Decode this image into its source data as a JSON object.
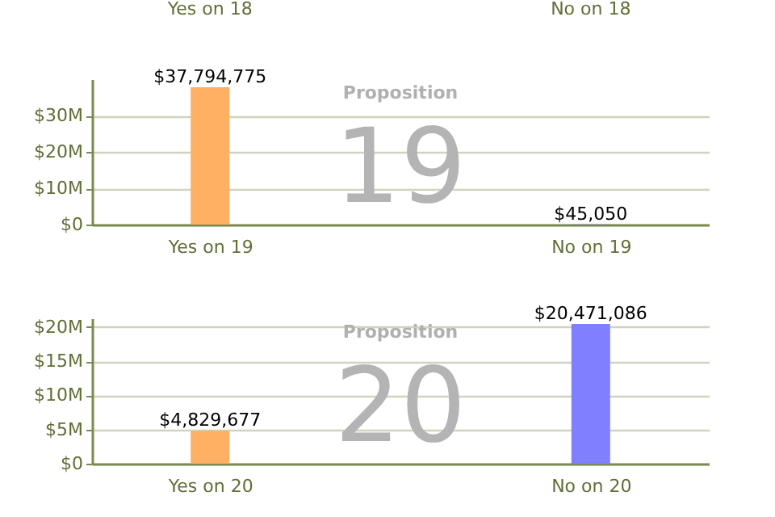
{
  "chart_data": [
    {
      "type": "other",
      "annotations": [
        "Yes on 18",
        "No on 18"
      ]
    },
    {
      "type": "bar",
      "annotations": [
        "Proposition",
        "19"
      ],
      "categories": [
        "Yes on 19",
        "No on 19"
      ],
      "values": [
        37794775,
        45050
      ],
      "colors": [
        "#ffb062",
        "#7f7fff"
      ],
      "value_labels": [
        "$37,794,775",
        "$45,050"
      ],
      "ylim": [
        0,
        40000000
      ],
      "yticks": [
        {
          "value": 0,
          "label": "$0"
        },
        {
          "value": 10000000,
          "label": "$10M"
        },
        {
          "value": 20000000,
          "label": "$20M"
        },
        {
          "value": 30000000,
          "label": "$30M"
        }
      ],
      "grid": "y"
    },
    {
      "type": "bar",
      "annotations": [
        "Proposition",
        "20"
      ],
      "categories": [
        "Yes on 20",
        "No on 20"
      ],
      "values": [
        4829677,
        20471086
      ],
      "colors": [
        "#ffb062",
        "#7f7fff"
      ],
      "value_labels": [
        "$4,829,677",
        "$20,471,086"
      ],
      "ylim": [
        0,
        21300000
      ],
      "yticks": [
        {
          "value": 0,
          "label": "$0"
        },
        {
          "value": 5000000,
          "label": "$5M"
        },
        {
          "value": 10000000,
          "label": "$10M"
        },
        {
          "value": 15000000,
          "label": "$15M"
        },
        {
          "value": 20000000,
          "label": "$20M"
        }
      ],
      "grid": "y"
    }
  ]
}
